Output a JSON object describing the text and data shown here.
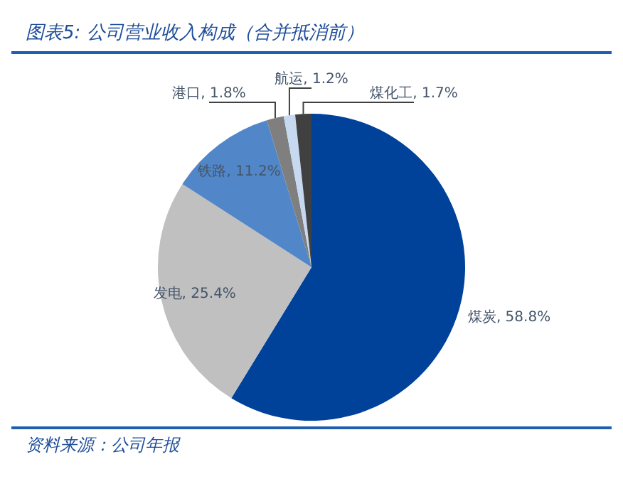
{
  "chart_data": {
    "type": "pie",
    "title": "图表5: 公司营业收入构成（合并抵消前）",
    "categories": [
      "煤炭",
      "发电",
      "铁路",
      "港口",
      "航运",
      "煤化工"
    ],
    "values": [
      58.8,
      25.4,
      11.2,
      1.8,
      1.2,
      1.7
    ],
    "colors": [
      "#00429a",
      "#c0c0c0",
      "#5187c8",
      "#7f7f7f",
      "#c6d9f1",
      "#404040"
    ],
    "value_labels": [
      ", 58.8%",
      ", 25.4%",
      ", 11.2%",
      ", 1.8%",
      ", 1.2%",
      ", 1.7%"
    ],
    "legend": false,
    "annotations": [
      "资料来源：公司年报"
    ]
  }
}
